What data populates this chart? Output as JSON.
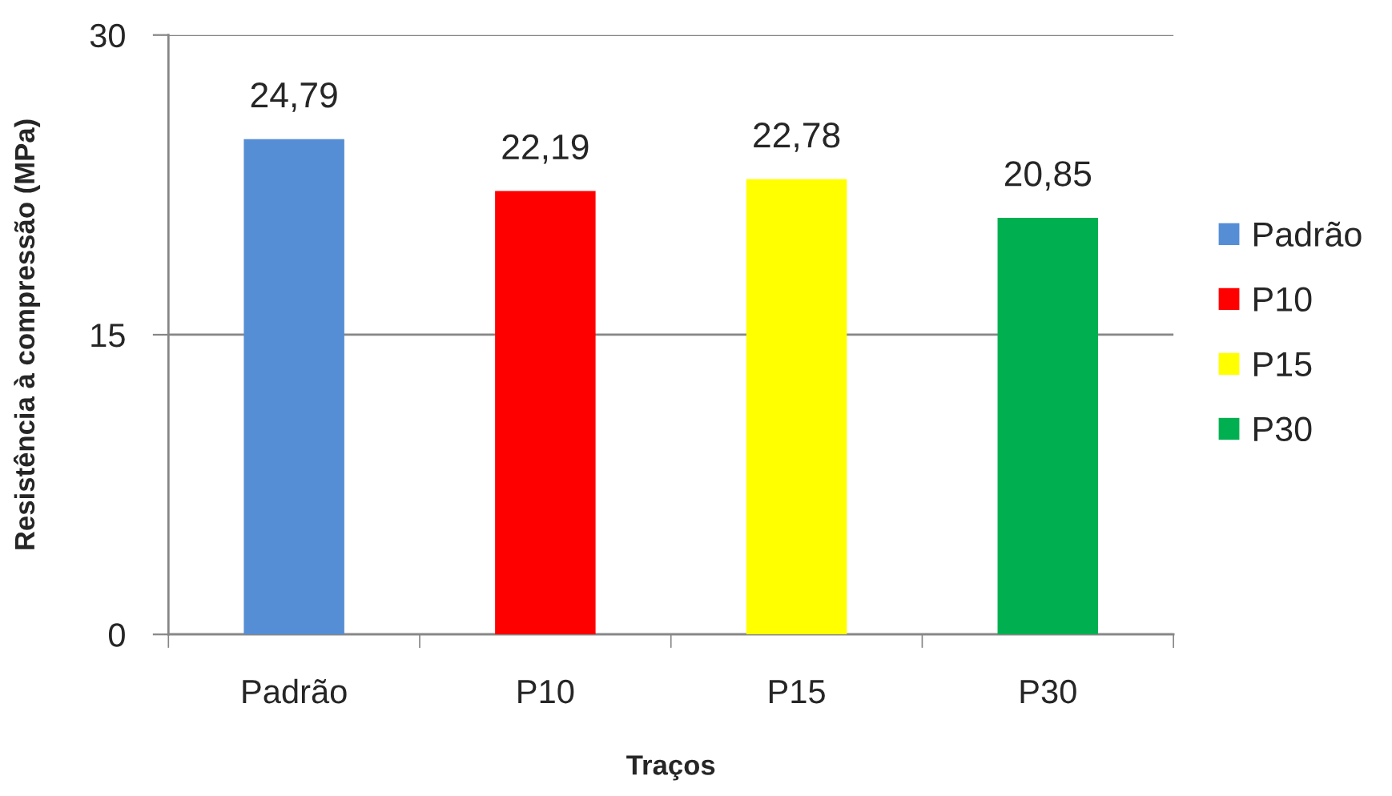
{
  "chart_data": {
    "type": "bar",
    "xlabel": "Traços",
    "ylabel": "Resistência à compressão (MPa)",
    "categories": [
      "Padrão",
      "P10",
      "P15",
      "P30"
    ],
    "stacked": true,
    "series": [
      {
        "name": "Padrão",
        "color": "#558ed5",
        "values": [
          24.79,
          null,
          null,
          null
        ],
        "value_labels": [
          "24,79",
          null,
          null,
          null
        ]
      },
      {
        "name": "P10",
        "color": "#ff0000",
        "values": [
          null,
          22.19,
          null,
          null
        ],
        "value_labels": [
          null,
          "22,19",
          null,
          null
        ]
      },
      {
        "name": "P15",
        "color": "#ffff00",
        "values": [
          null,
          null,
          22.78,
          null
        ],
        "value_labels": [
          null,
          null,
          "22,78",
          null
        ]
      },
      {
        "name": "P30",
        "color": "#00b050",
        "values": [
          null,
          null,
          null,
          20.85
        ],
        "value_labels": [
          null,
          null,
          null,
          "20,85"
        ]
      }
    ],
    "ylim": [
      0,
      30
    ],
    "yticks": [
      0,
      15,
      30
    ],
    "grid": "y",
    "legend": "right"
  }
}
